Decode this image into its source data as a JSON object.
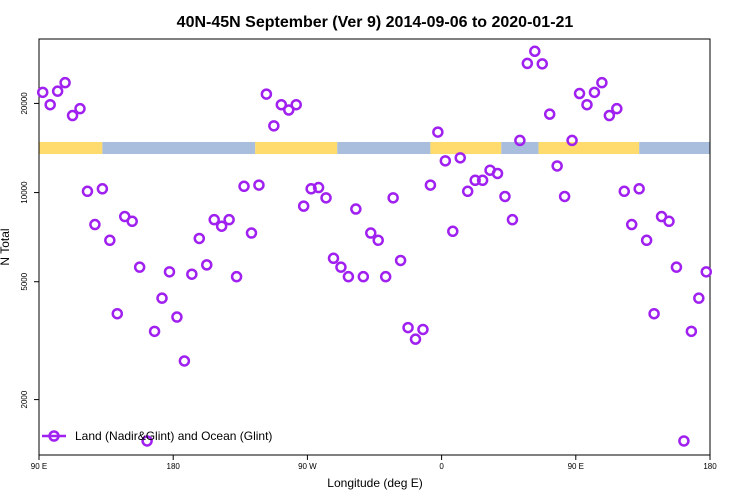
{
  "chart_data": {
    "type": "scatter",
    "title": "40N-45N September (Ver 9)   2014-09-06 to 2020-01-21",
    "xlabel": "Longitude (deg E)",
    "ylabel": "N Total",
    "y_scale": "log",
    "ylim": [
      1300,
      33000
    ],
    "xlim": [
      0,
      90
    ],
    "grid": false,
    "legend_position": "bottom-left",
    "x_ticks": [
      {
        "value": 0,
        "label": "90 E"
      },
      {
        "value": 18,
        "label": "180"
      },
      {
        "value": 36,
        "label": "90 W"
      },
      {
        "value": 54,
        "label": "0"
      },
      {
        "value": 72,
        "label": "90 E"
      },
      {
        "value": 90,
        "label": "180"
      }
    ],
    "y_ticks": [
      {
        "value": 2000,
        "label": "2000"
      },
      {
        "value": 5000,
        "label": "5000"
      },
      {
        "value": 10000,
        "label": "10000"
      },
      {
        "value": 20000,
        "label": "20000"
      }
    ],
    "colors": {
      "series": "#a020f0",
      "land": "#ffdb6e",
      "ocean": "#a8bedc"
    },
    "land_ocean_strip": [
      {
        "from": 0,
        "to": 8.5,
        "type": "land"
      },
      {
        "from": 8.5,
        "to": 29,
        "type": "ocean"
      },
      {
        "from": 29,
        "to": 40,
        "type": "land"
      },
      {
        "from": 40,
        "to": 52.5,
        "type": "ocean"
      },
      {
        "from": 52.5,
        "to": 62,
        "type": "land"
      },
      {
        "from": 62,
        "to": 67,
        "type": "ocean"
      },
      {
        "from": 67,
        "to": 80.5,
        "type": "land"
      },
      {
        "from": 80.5,
        "to": 90,
        "type": "ocean"
      }
    ],
    "series": [
      {
        "name": "Land (Nadir&Glint) and Ocean (Glint)",
        "points": [
          [
            0.5,
            21800
          ],
          [
            1.5,
            19800
          ],
          [
            2.5,
            22000
          ],
          [
            3.5,
            23500
          ],
          [
            4.5,
            18200
          ],
          [
            5.5,
            19200
          ],
          [
            6.5,
            10100
          ],
          [
            7.5,
            7800
          ],
          [
            8.5,
            10300
          ],
          [
            9.5,
            6900
          ],
          [
            10.5,
            3900
          ],
          [
            11.5,
            8300
          ],
          [
            12.5,
            8000
          ],
          [
            13.5,
            5600
          ],
          [
            14.5,
            1450
          ],
          [
            15.5,
            3400
          ],
          [
            16.5,
            4400
          ],
          [
            17.5,
            5400
          ],
          [
            18.5,
            3800
          ],
          [
            19.5,
            2700
          ],
          [
            20.5,
            5300
          ],
          [
            21.5,
            7000
          ],
          [
            22.5,
            5700
          ],
          [
            23.5,
            8100
          ],
          [
            24.5,
            7700
          ],
          [
            25.5,
            8100
          ],
          [
            26.5,
            5200
          ],
          [
            27.5,
            10500
          ],
          [
            28.5,
            7300
          ],
          [
            29.5,
            10600
          ],
          [
            30.5,
            21500
          ],
          [
            31.5,
            16800
          ],
          [
            32.5,
            19800
          ],
          [
            33.5,
            19000
          ],
          [
            34.5,
            19800
          ],
          [
            35.5,
            9000
          ],
          [
            36.5,
            10300
          ],
          [
            37.5,
            10400
          ],
          [
            38.5,
            9600
          ],
          [
            39.5,
            6000
          ],
          [
            40.5,
            5600
          ],
          [
            41.5,
            5200
          ],
          [
            42.5,
            8800
          ],
          [
            43.5,
            5200
          ],
          [
            44.5,
            7300
          ],
          [
            45.5,
            6900
          ],
          [
            46.5,
            5200
          ],
          [
            47.5,
            9600
          ],
          [
            48.5,
            5900
          ],
          [
            49.5,
            3500
          ],
          [
            50.5,
            3200
          ],
          [
            51.5,
            3450
          ],
          [
            52.5,
            10600
          ],
          [
            53.5,
            16000
          ],
          [
            54.5,
            12800
          ],
          [
            55.5,
            7400
          ],
          [
            56.5,
            13100
          ],
          [
            57.5,
            10100
          ],
          [
            58.5,
            11000
          ],
          [
            59.5,
            11000
          ],
          [
            60.5,
            11900
          ],
          [
            61.5,
            11600
          ],
          [
            62.5,
            9700
          ],
          [
            63.5,
            8100
          ],
          [
            64.5,
            15000
          ],
          [
            65.5,
            27300
          ],
          [
            66.5,
            30000
          ],
          [
            67.5,
            27200
          ],
          [
            68.5,
            18400
          ],
          [
            69.5,
            12300
          ],
          [
            70.5,
            9700
          ],
          [
            71.5,
            15000
          ],
          [
            72.5,
            21600
          ],
          [
            73.5,
            19800
          ],
          [
            74.5,
            21800
          ],
          [
            75.5,
            23500
          ],
          [
            76.5,
            18200
          ],
          [
            77.5,
            19200
          ],
          [
            78.5,
            10100
          ],
          [
            79.5,
            7800
          ],
          [
            80.5,
            10300
          ],
          [
            81.5,
            6900
          ],
          [
            82.5,
            3900
          ],
          [
            83.5,
            8300
          ],
          [
            84.5,
            8000
          ],
          [
            85.5,
            5600
          ],
          [
            86.5,
            1450
          ],
          [
            87.5,
            3400
          ],
          [
            88.5,
            4400
          ],
          [
            89.5,
            5400
          ]
        ]
      }
    ]
  }
}
